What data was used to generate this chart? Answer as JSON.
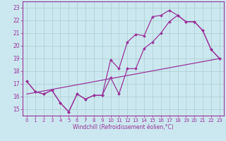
{
  "xlabel": "Windchill (Refroidissement éolien,°C)",
  "bg_color": "#cbe8f0",
  "line_color": "#993399",
  "grid_color": "#aacccc",
  "xlim": [
    -0.5,
    23.5
  ],
  "ylim": [
    14.5,
    23.5
  ],
  "xticks": [
    0,
    1,
    2,
    3,
    4,
    5,
    6,
    7,
    8,
    9,
    10,
    11,
    12,
    13,
    14,
    15,
    16,
    17,
    18,
    19,
    20,
    21,
    22,
    23
  ],
  "yticks": [
    15,
    16,
    17,
    18,
    19,
    20,
    21,
    22,
    23
  ],
  "line1_x": [
    0,
    1,
    2,
    3,
    4,
    5,
    6,
    7,
    8,
    9,
    10,
    11,
    12,
    13,
    14,
    15,
    16,
    17,
    18,
    19,
    20,
    21,
    22,
    23
  ],
  "line1_y": [
    17.2,
    16.4,
    16.2,
    16.5,
    15.5,
    14.8,
    16.2,
    15.8,
    16.1,
    16.1,
    18.9,
    18.2,
    20.3,
    20.9,
    20.8,
    22.3,
    22.4,
    22.8,
    22.4,
    21.9,
    21.9,
    21.2,
    19.7,
    19.0
  ],
  "line2_x": [
    0,
    1,
    2,
    3,
    4,
    5,
    6,
    7,
    8,
    9,
    10,
    11,
    12,
    13,
    14,
    15,
    16,
    17,
    18,
    19,
    20,
    21,
    22,
    23
  ],
  "line2_y": [
    17.2,
    16.4,
    16.2,
    16.5,
    15.5,
    14.8,
    16.2,
    15.8,
    16.1,
    16.1,
    17.5,
    16.2,
    18.2,
    18.2,
    19.8,
    20.3,
    21.0,
    21.9,
    22.4,
    21.9,
    21.9,
    21.2,
    19.7,
    19.0
  ],
  "line3_x": [
    0,
    23
  ],
  "line3_y": [
    16.2,
    19.0
  ]
}
